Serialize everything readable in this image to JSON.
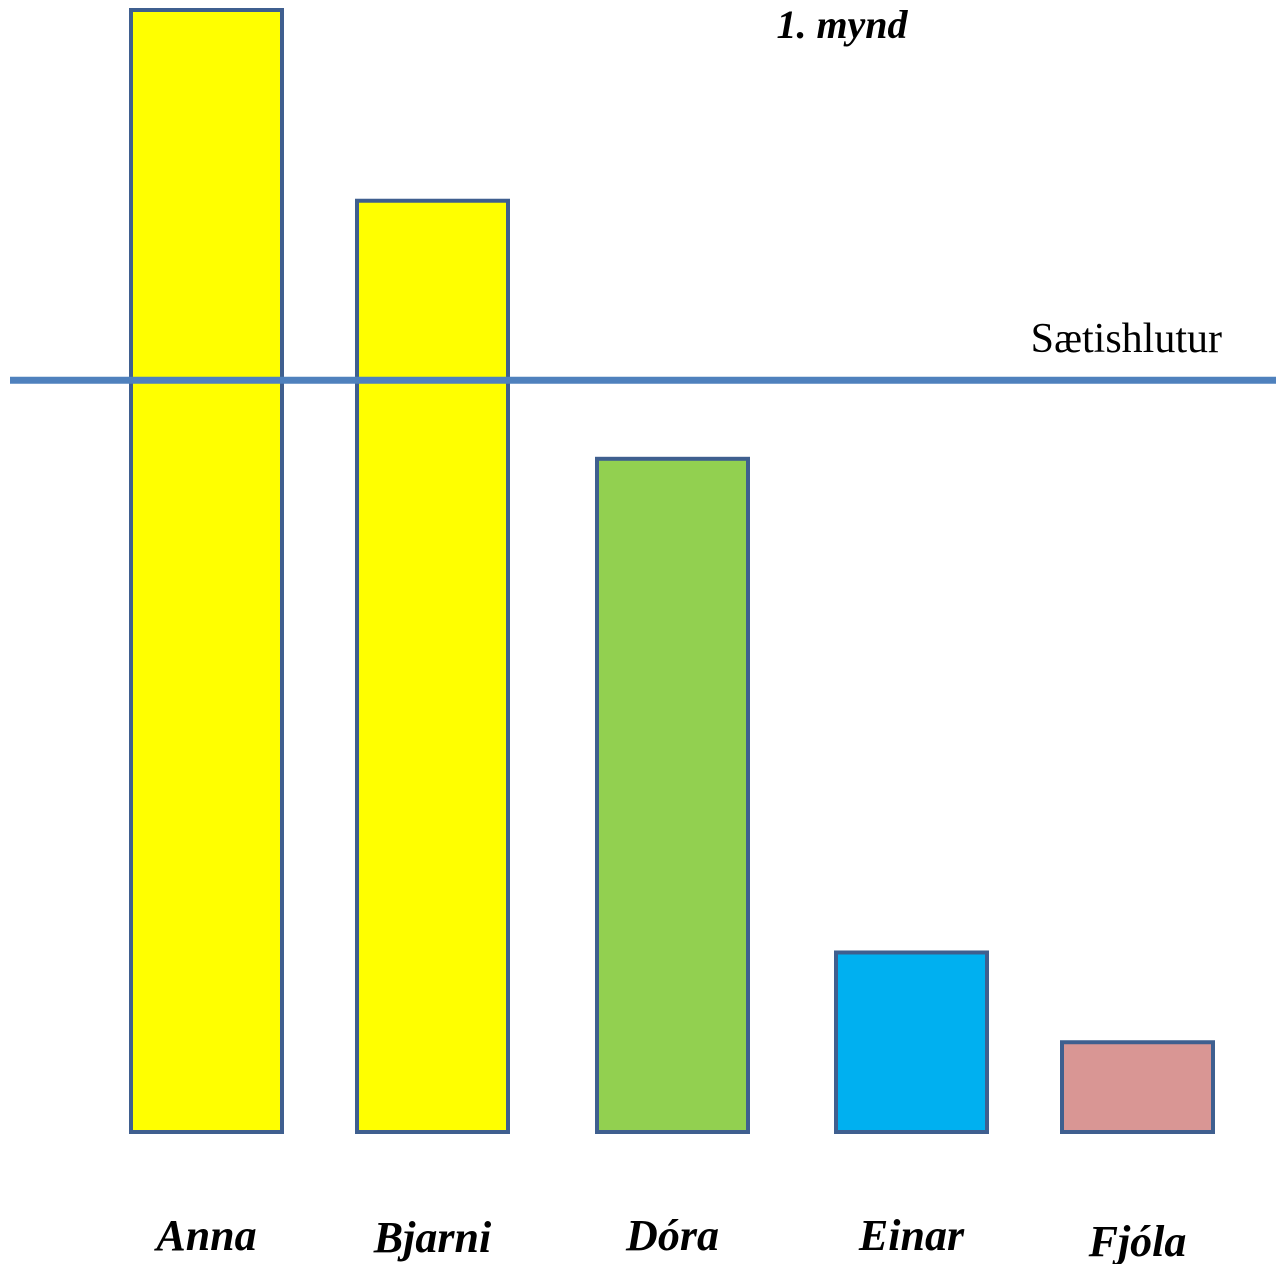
{
  "chart_data": {
    "type": "bar",
    "title": "1. mynd",
    "categories": [
      "Anna",
      "Bjarni",
      "Dóra",
      "Einar",
      "Fjóla"
    ],
    "values": [
      100,
      83,
      60,
      16,
      8
    ],
    "colors": [
      "#ffff00",
      "#ffff00",
      "#92d050",
      "#00b0f0",
      "#d99694"
    ],
    "border_color": "#3f5f8f",
    "ylim": [
      0,
      100
    ],
    "grid": false,
    "threshold": {
      "label": "Sætishlutur",
      "value": 67,
      "color": "#4f81bd"
    }
  }
}
